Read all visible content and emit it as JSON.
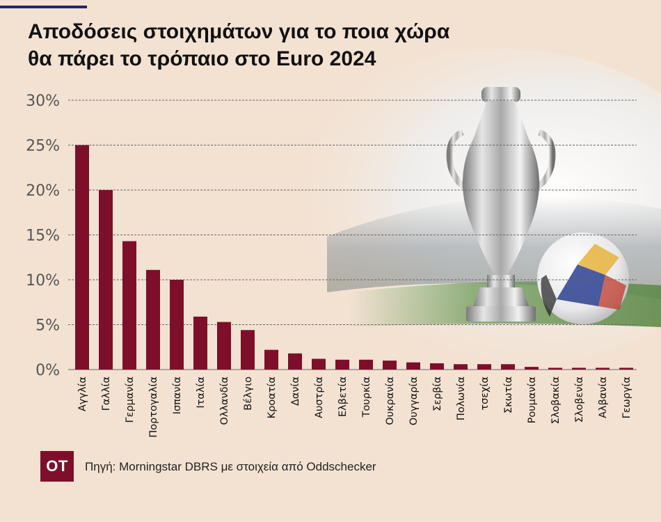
{
  "header": {
    "title_line1": "Αποδόσεις στοιχημάτων για το ποια χώρα",
    "title_line2": "θα πάρει το τρόπαιο στο Euro 2024"
  },
  "footer": {
    "logo": "OT",
    "source": "Πηγή: Morningstar DBRS με στοιχεία από Oddschecker"
  },
  "colors": {
    "bar": "#7d0f2b",
    "background": "#f3e2d2",
    "grid": "#666666",
    "tick_text": "#555555",
    "category_text": "#111111",
    "top_rule": "#1c2a6b"
  },
  "chart_data": {
    "type": "bar",
    "title": "Αποδόσεις στοιχημάτων για το ποια χώρα θα πάρει το τρόπαιο στο Euro 2024",
    "ylim": [
      0,
      30
    ],
    "yticks": [
      0,
      5,
      10,
      15,
      20,
      25,
      30
    ],
    "ytick_labels": [
      "0%",
      "5%",
      "10%",
      "15%",
      "20%",
      "25%",
      "30%"
    ],
    "grid": true,
    "categories": [
      "Αγγλία",
      "Γαλλία",
      "Γερμανία",
      "Πορτογαλία",
      "Ισπανία",
      "Ιταλία",
      "Ολλανδία",
      "Βέλγιο",
      "Κροατία",
      "Δανία",
      "Αυστρία",
      "Ελβετία",
      "Τουρκία",
      "Ουκρανία",
      "Ουγγαρία",
      "Σερβία",
      "Πολωνία",
      "τσεχία",
      "Σκωτία",
      "Ρουμανία",
      "Σλοβακία",
      "Σλοβενία",
      "Αλβανία",
      "Γεωργία"
    ],
    "values": [
      25.0,
      20.0,
      14.3,
      11.1,
      10.0,
      5.9,
      5.3,
      4.4,
      2.2,
      1.8,
      1.2,
      1.1,
      1.1,
      1.0,
      0.8,
      0.7,
      0.6,
      0.6,
      0.6,
      0.3,
      0.2,
      0.2,
      0.2,
      0.2
    ]
  }
}
